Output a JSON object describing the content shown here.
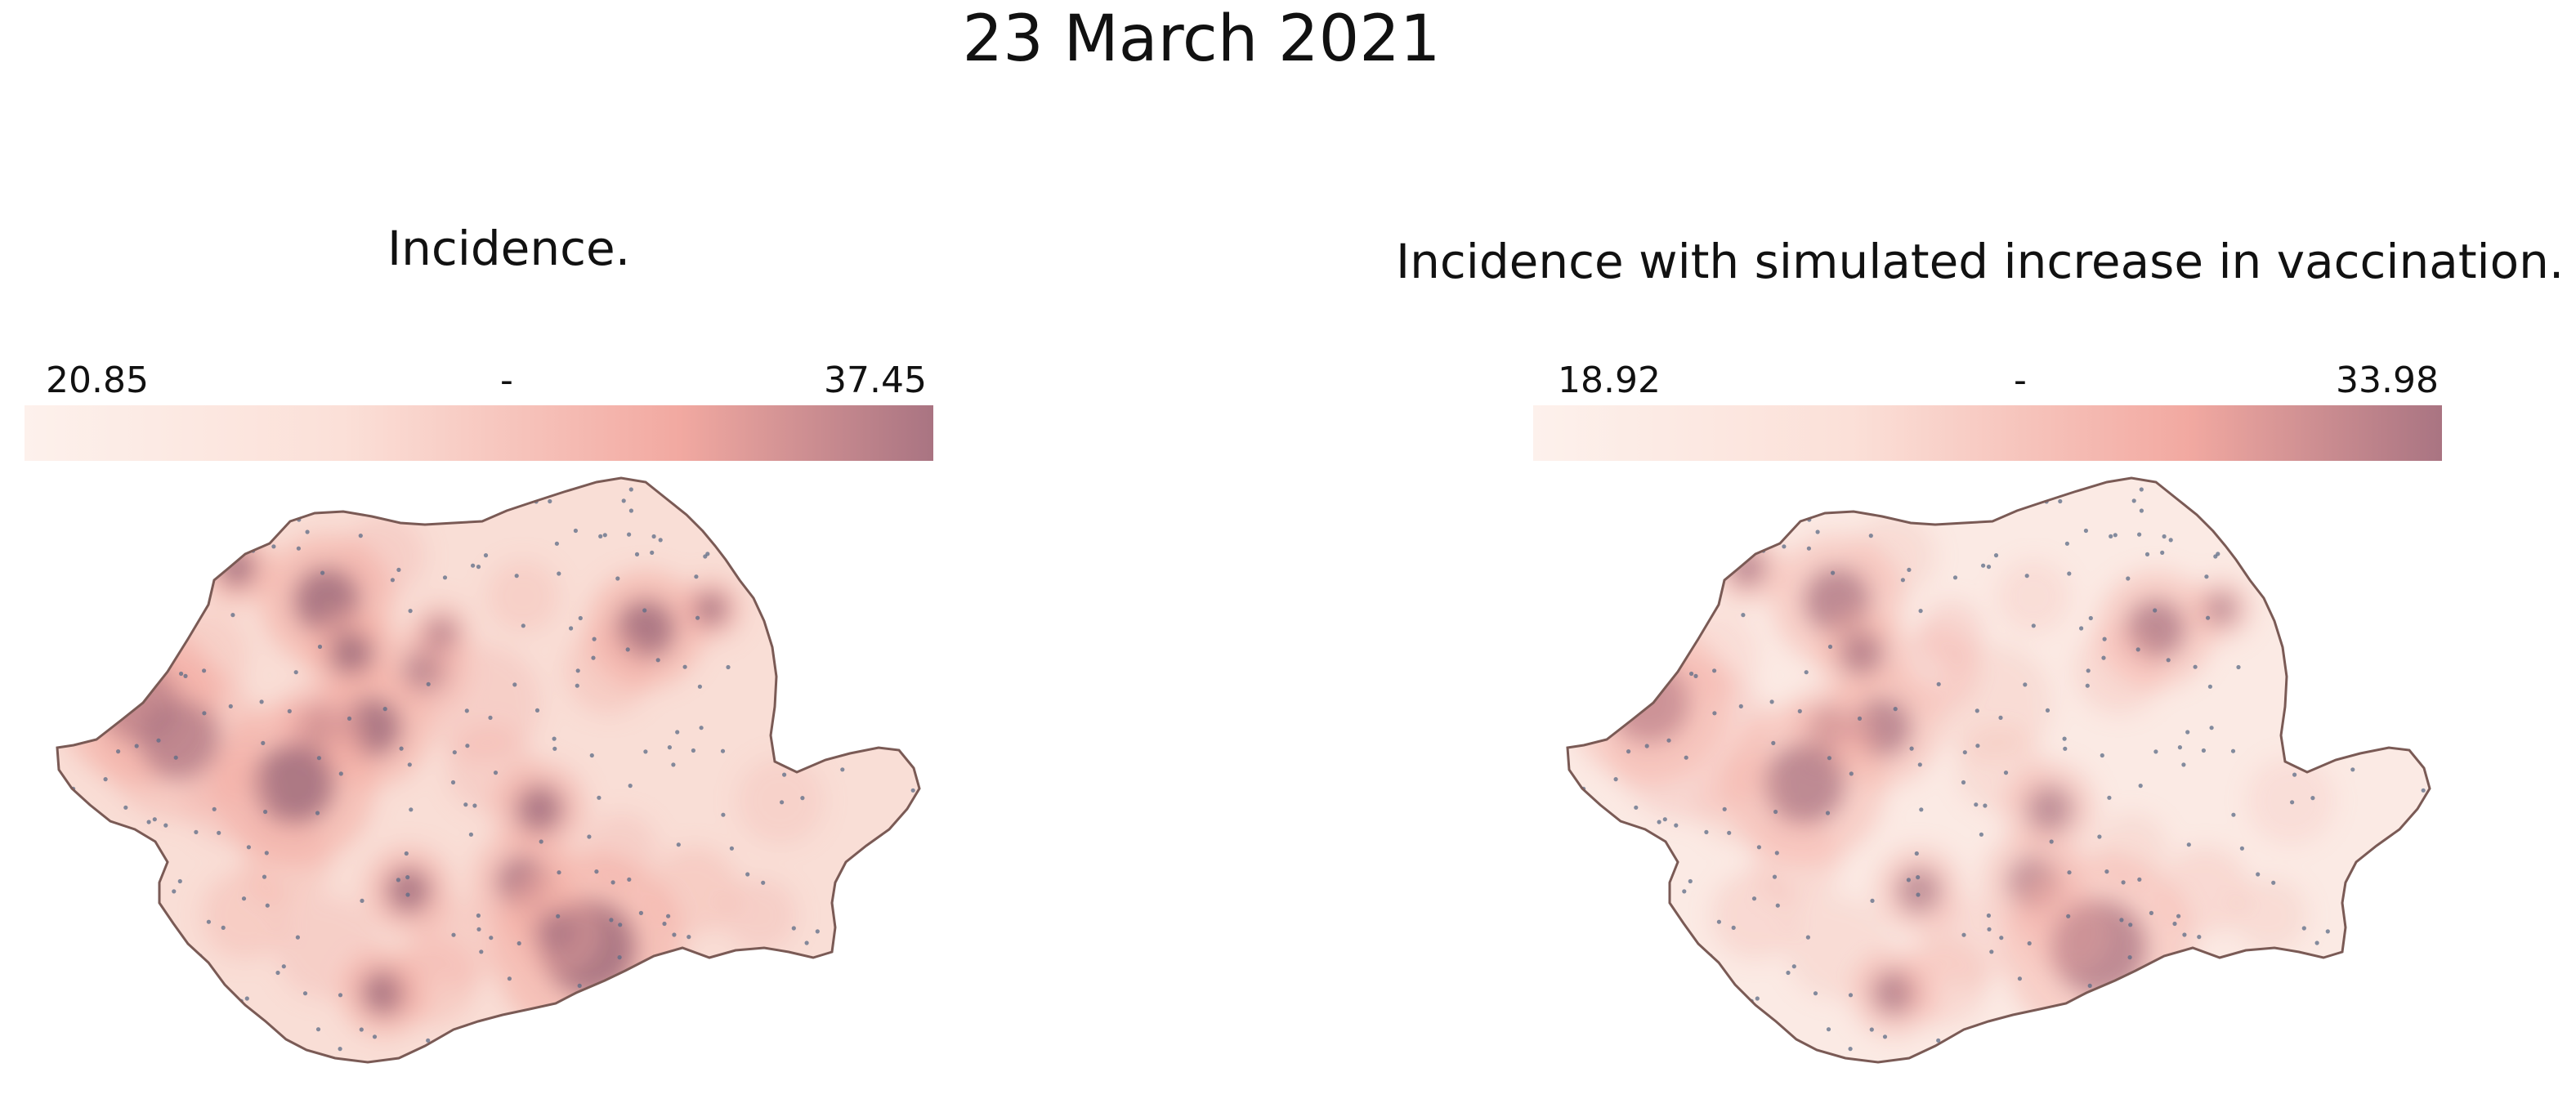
{
  "title": "23 March 2021",
  "panels": [
    {
      "title": "Incidence.",
      "legend": {
        "min": "20.85",
        "mid": "-",
        "max": "37.45"
      },
      "hotspot_intensity": 1.0
    },
    {
      "title": "Incidence with simulated increase in vaccination.",
      "legend": {
        "min": "18.92",
        "mid": "-",
        "max": "33.98"
      },
      "hotspot_intensity": 0.75
    }
  ],
  "colors": {
    "scale_low": "#fdf1ec",
    "scale_mid": "#f2a9a1",
    "scale_high": "#a97482",
    "border": "#7a5a55",
    "points": "#5b6b85"
  }
}
